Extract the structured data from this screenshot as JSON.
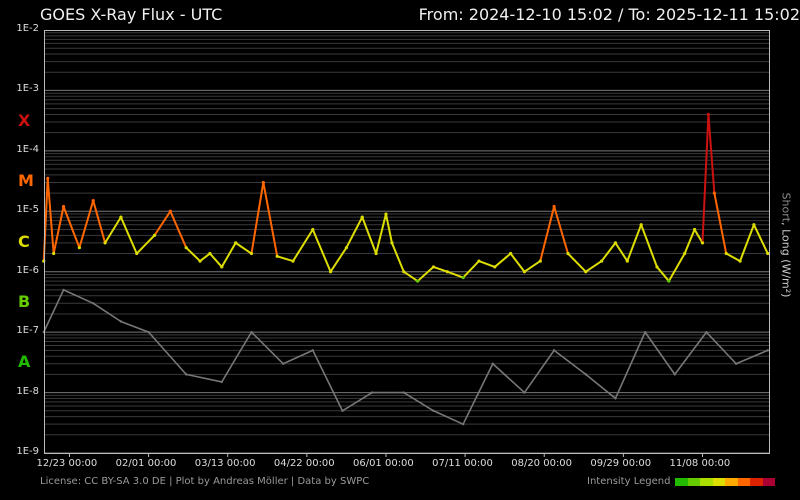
{
  "header": {
    "title": "GOES X-Ray Flux - UTC",
    "range": "From: 2024-12-10 15:02  /  To: 2025-12-11 15:02"
  },
  "footer": {
    "credits": "License: CC BY-SA 3.0 DE | Plot by Andreas Möller | Data by SWPC",
    "legend_label": "Intensity Legend"
  },
  "chart_data": {
    "type": "line",
    "title": "GOES X-Ray Flux - UTC",
    "ylabel": "Short, Long (W/m²)",
    "ylabel_parts": {
      "short": "Short",
      "sep": ", ",
      "long": "Long (W/m²)"
    },
    "yscale": "log",
    "ylim": [
      1e-09,
      0.01
    ],
    "y_ticks": [
      "1E-2",
      "1E-3",
      "1E-4",
      "1E-5",
      "1E-6",
      "1E-7",
      "1E-8",
      "1E-9"
    ],
    "xlim": [
      "2024-12-10T15:02",
      "2025-12-11T15:02"
    ],
    "x_ticks": [
      {
        "date": "2024-12-23",
        "label": "12/23 00:00"
      },
      {
        "date": "2025-02-01",
        "label": "02/01 00:00"
      },
      {
        "date": "2025-03-13",
        "label": "03/13 00:00"
      },
      {
        "date": "2025-04-22",
        "label": "04/22 00:00"
      },
      {
        "date": "2025-06-01",
        "label": "06/01 00:00"
      },
      {
        "date": "2025-07-11",
        "label": "07/11 00:00"
      },
      {
        "date": "2025-08-20",
        "label": "08/20 00:00"
      },
      {
        "date": "2025-09-29",
        "label": "09/29 00:00"
      },
      {
        "date": "2025-11-08",
        "label": "11/08 00:00"
      }
    ],
    "flare_classes": [
      {
        "label": "X",
        "flux": 0.0001,
        "color": "#cc1111"
      },
      {
        "label": "M",
        "flux": 1e-05,
        "color": "#ff6600"
      },
      {
        "label": "C",
        "flux": 1e-06,
        "color": "#dddd00"
      },
      {
        "label": "B",
        "flux": 1e-07,
        "color": "#66cc00"
      },
      {
        "label": "A",
        "flux": 1e-08,
        "color": "#22bb00"
      }
    ],
    "grid": true,
    "series": [
      {
        "name": "Long",
        "color": "intensity",
        "points": [
          [
            "2024-12-10",
            1.5e-06
          ],
          [
            "2024-12-12",
            3.5e-05
          ],
          [
            "2024-12-15",
            2e-06
          ],
          [
            "2024-12-20",
            1.2e-05
          ],
          [
            "2024-12-28",
            2.5e-06
          ],
          [
            "2025-01-04",
            1.5e-05
          ],
          [
            "2025-01-10",
            3e-06
          ],
          [
            "2025-01-18",
            8e-06
          ],
          [
            "2025-01-26",
            2e-06
          ],
          [
            "2025-02-04",
            4e-06
          ],
          [
            "2025-02-12",
            1e-05
          ],
          [
            "2025-02-20",
            2.5e-06
          ],
          [
            "2025-02-27",
            1.5e-06
          ],
          [
            "2025-03-04",
            2e-06
          ],
          [
            "2025-03-10",
            1.2e-06
          ],
          [
            "2025-03-17",
            3e-06
          ],
          [
            "2025-03-25",
            2e-06
          ],
          [
            "2025-03-31",
            3e-05
          ],
          [
            "2025-04-07",
            1.8e-06
          ],
          [
            "2025-04-15",
            1.5e-06
          ],
          [
            "2025-04-25",
            5e-06
          ],
          [
            "2025-05-04",
            1e-06
          ],
          [
            "2025-05-12",
            2.5e-06
          ],
          [
            "2025-05-20",
            8e-06
          ],
          [
            "2025-05-27",
            2e-06
          ],
          [
            "2025-06-01",
            9e-06
          ],
          [
            "2025-06-04",
            3e-06
          ],
          [
            "2025-06-10",
            1e-06
          ],
          [
            "2025-06-17",
            7e-07
          ],
          [
            "2025-06-25",
            1.2e-06
          ],
          [
            "2025-07-02",
            1e-06
          ],
          [
            "2025-07-10",
            8e-07
          ],
          [
            "2025-07-18",
            1.5e-06
          ],
          [
            "2025-07-26",
            1.2e-06
          ],
          [
            "2025-08-03",
            2e-06
          ],
          [
            "2025-08-10",
            1e-06
          ],
          [
            "2025-08-18",
            1.5e-06
          ],
          [
            "2025-08-25",
            1.2e-05
          ],
          [
            "2025-09-01",
            2e-06
          ],
          [
            "2025-09-10",
            1e-06
          ],
          [
            "2025-09-18",
            1.5e-06
          ],
          [
            "2025-09-25",
            3e-06
          ],
          [
            "2025-10-01",
            1.5e-06
          ],
          [
            "2025-10-08",
            6e-06
          ],
          [
            "2025-10-16",
            1.2e-06
          ],
          [
            "2025-10-22",
            7e-07
          ],
          [
            "2025-10-30",
            2e-06
          ],
          [
            "2025-11-04",
            5e-06
          ],
          [
            "2025-11-08",
            3e-06
          ],
          [
            "2025-11-11",
            0.0004
          ],
          [
            "2025-11-14",
            2e-05
          ],
          [
            "2025-11-20",
            2e-06
          ],
          [
            "2025-11-27",
            1.5e-06
          ],
          [
            "2025-12-04",
            6e-06
          ],
          [
            "2025-12-11",
            2e-06
          ]
        ]
      },
      {
        "name": "Short",
        "color": "#777777",
        "points": [
          [
            "2024-12-10",
            1e-07
          ],
          [
            "2024-12-20",
            5e-07
          ],
          [
            "2025-01-04",
            3e-07
          ],
          [
            "2025-01-18",
            1.5e-07
          ],
          [
            "2025-02-01",
            1e-07
          ],
          [
            "2025-02-20",
            2e-08
          ],
          [
            "2025-03-10",
            1.5e-08
          ],
          [
            "2025-03-25",
            1e-07
          ],
          [
            "2025-04-10",
            3e-08
          ],
          [
            "2025-04-25",
            5e-08
          ],
          [
            "2025-05-10",
            5e-09
          ],
          [
            "2025-05-25",
            1e-08
          ],
          [
            "2025-06-10",
            1e-08
          ],
          [
            "2025-06-25",
            5e-09
          ],
          [
            "2025-07-10",
            3e-09
          ],
          [
            "2025-07-25",
            3e-08
          ],
          [
            "2025-08-10",
            1e-08
          ],
          [
            "2025-08-25",
            5e-08
          ],
          [
            "2025-09-10",
            2e-08
          ],
          [
            "2025-09-25",
            8e-09
          ],
          [
            "2025-10-10",
            1e-07
          ],
          [
            "2025-10-25",
            2e-08
          ],
          [
            "2025-11-10",
            1e-07
          ],
          [
            "2025-11-25",
            3e-08
          ],
          [
            "2025-12-11",
            5e-08
          ]
        ]
      }
    ],
    "legend": {
      "label": "Intensity Legend",
      "colors": [
        "#22bb00",
        "#66cc00",
        "#aadd00",
        "#dddd00",
        "#ffaa00",
        "#ff6600",
        "#dd2200",
        "#aa0033"
      ]
    }
  }
}
